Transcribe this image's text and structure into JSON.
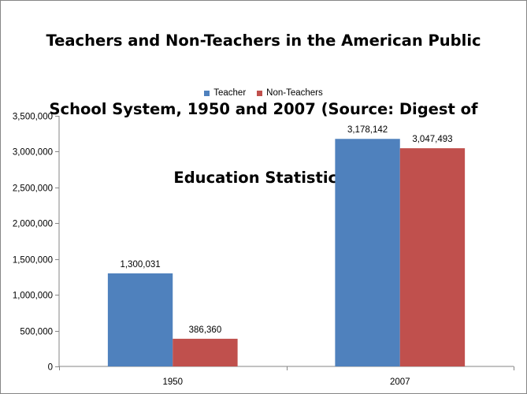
{
  "chart_data": {
    "type": "bar",
    "title": "Teachers and Non-Teachers in the American Public School System, 1950 and 2007 (Source: Digest of Education Statistics)",
    "title_lines": [
      "Teachers and Non-Teachers in the American Public",
      "School System, 1950 and 2007 (Source: Digest of",
      "Education Statistics)"
    ],
    "categories": [
      "1950",
      "2007"
    ],
    "series": [
      {
        "name": "Teacher",
        "color": "#4F81BD",
        "values": [
          1300031,
          3178142
        ],
        "labels": [
          "1,300,031",
          "3,178,142"
        ]
      },
      {
        "name": "Non-Teachers",
        "color": "#C0504D",
        "values": [
          386360,
          3047493
        ],
        "labels": [
          "386,360",
          "3,047,493"
        ]
      }
    ],
    "ylim": [
      0,
      3500000
    ],
    "yticks": [
      0,
      500000,
      1000000,
      1500000,
      2000000,
      2500000,
      3000000,
      3500000
    ],
    "ytick_labels": [
      "0",
      "500,000",
      "1,000,000",
      "1,500,000",
      "2,000,000",
      "2,500,000",
      "3,000,000",
      "3,500,000"
    ],
    "xlabel": "",
    "ylabel": "",
    "grid": false,
    "legend_position": "top"
  }
}
